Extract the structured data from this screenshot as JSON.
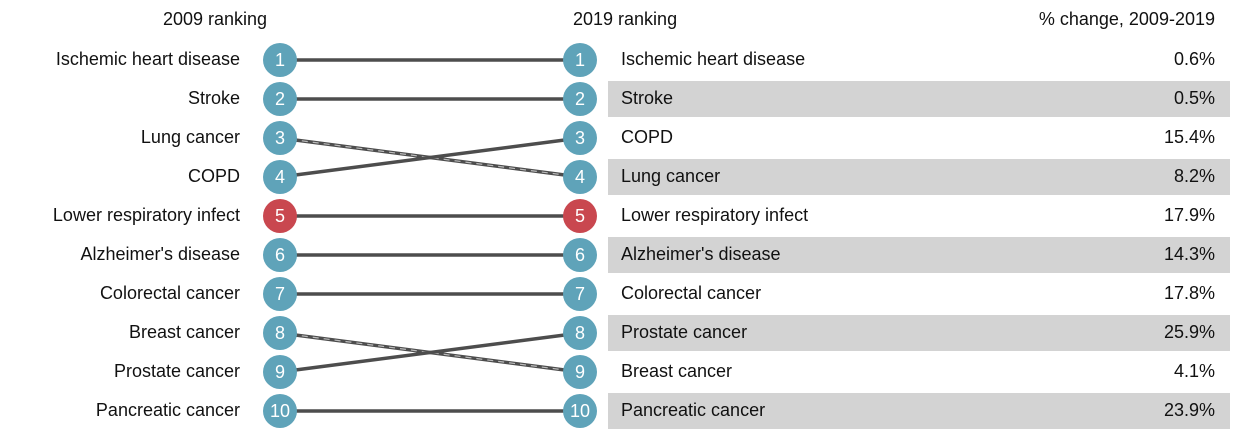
{
  "chart_data": {
    "type": "bump",
    "left_title": "2009 ranking",
    "right_title": "2019 ranking",
    "change_title": "% change, 2009-2019",
    "ranks": [
      1,
      2,
      3,
      4,
      5,
      6,
      7,
      8,
      9,
      10
    ],
    "names_2009": [
      "Ischemic heart disease",
      "Stroke",
      "Lung cancer",
      "COPD",
      "Lower respiratory infect",
      "Alzheimer's disease",
      "Colorectal cancer",
      "Breast cancer",
      "Prostate cancer",
      "Pancreatic cancer"
    ],
    "names_2019": [
      "Ischemic heart disease",
      "Stroke",
      "COPD",
      "Lung cancer",
      "Lower respiratory infect",
      "Alzheimer's disease",
      "Colorectal cancer",
      "Prostate cancer",
      "Breast cancer",
      "Pancreatic cancer"
    ],
    "values": [
      0.6,
      0.5,
      15.4,
      8.2,
      17.9,
      14.3,
      17.8,
      25.9,
      4.1,
      23.9
    ],
    "value_labels": [
      "0.6%",
      "0.5%",
      "15.4%",
      "8.2%",
      "17.9%",
      "14.3%",
      "17.8%",
      "25.9%",
      "4.1%",
      "23.9%"
    ],
    "color": "#5fa3b9",
    "highlight_rank": 5,
    "highlight_color": "#c9474f",
    "line_color": "#4d4d4d",
    "band_color": "#d3d3d3"
  }
}
